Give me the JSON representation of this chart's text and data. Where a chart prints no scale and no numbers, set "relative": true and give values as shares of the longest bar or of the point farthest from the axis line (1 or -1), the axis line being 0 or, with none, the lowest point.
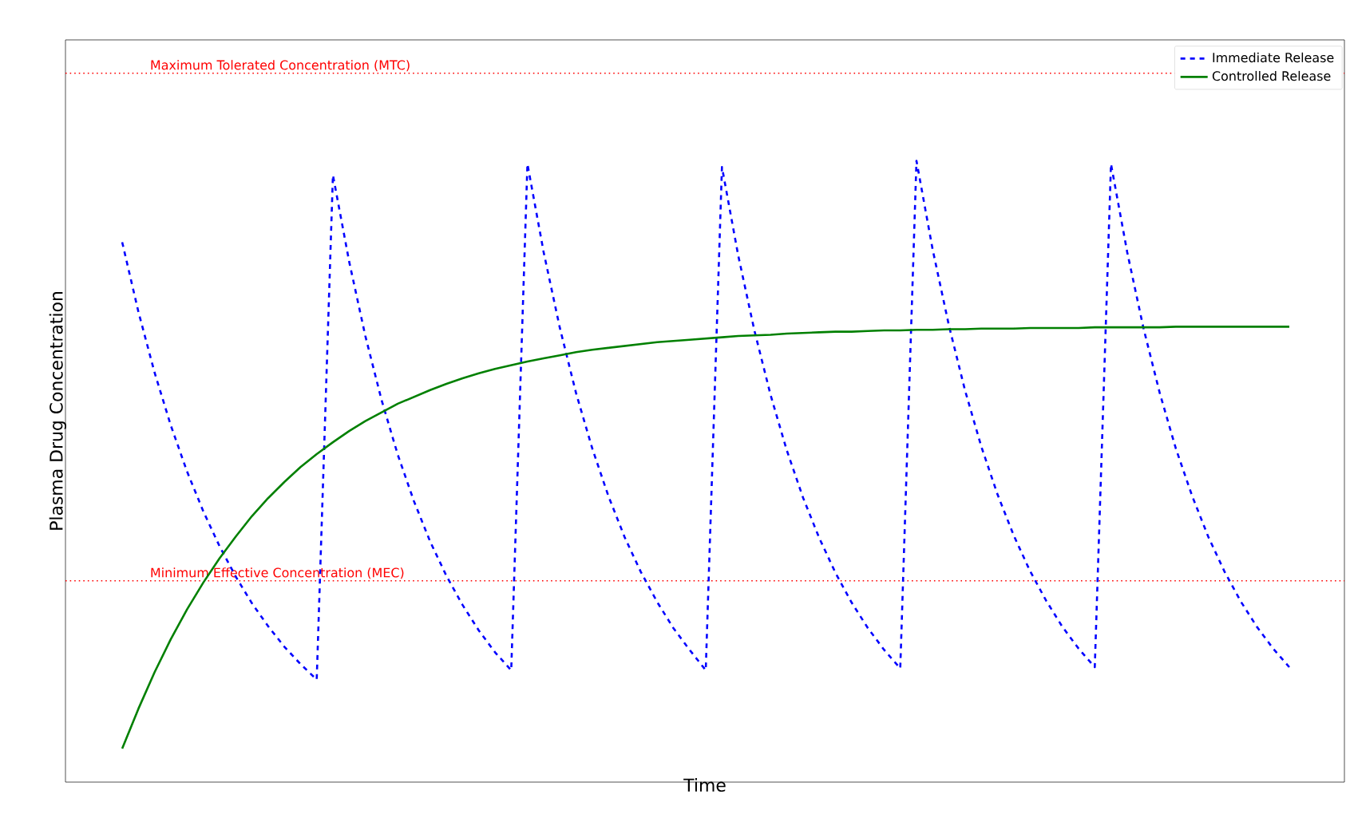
{
  "chart_data": {
    "type": "line",
    "relative": true,
    "xlabel": "Time",
    "ylabel": "Plasma Drug Concentration",
    "legend": "top right",
    "categories": [
      null,
      null,
      null,
      null,
      null,
      null,
      null,
      null,
      null,
      null,
      null,
      null,
      null,
      null,
      null,
      null,
      null,
      null,
      null,
      null,
      null,
      null,
      null,
      null,
      null,
      null,
      null,
      null,
      null,
      null,
      null,
      null,
      null,
      null,
      null,
      null,
      null,
      null,
      null,
      null,
      null,
      null,
      null,
      null,
      null,
      null,
      null,
      null,
      null,
      null,
      null,
      null,
      null,
      null,
      null,
      null,
      null,
      null,
      null,
      null,
      null,
      null,
      null,
      null,
      null,
      null,
      null,
      null,
      null,
      null,
      null,
      null,
      null
    ],
    "series": [
      {
        "name": "Immediate Release",
        "color": "#0000ff",
        "line_style": "dashed",
        "values": [
          0.869,
          0.757,
          0.659,
          0.574,
          0.5,
          0.436,
          0.38,
          0.331,
          0.288,
          0.251,
          0.218,
          0.19,
          0.165,
          0.977,
          0.838,
          0.718,
          0.615,
          0.527,
          0.452,
          0.387,
          0.332,
          0.285,
          0.244,
          0.209,
          0.18,
          0.995,
          0.853,
          0.731,
          0.626,
          0.537,
          0.46,
          0.394,
          0.338,
          0.29,
          0.248,
          0.213,
          0.18,
          0.99,
          0.848,
          0.727,
          0.623,
          0.534,
          0.458,
          0.393,
          0.337,
          0.289,
          0.248,
          0.213,
          0.183,
          1.0,
          0.857,
          0.735,
          0.63,
          0.54,
          0.463,
          0.397,
          0.34,
          0.292,
          0.25,
          0.215,
          0.185,
          0.995,
          0.853,
          0.731,
          0.627,
          0.537,
          0.461,
          0.395,
          0.339,
          0.291,
          0.25,
          0.215,
          0.185
        ]
      },
      {
        "name": "Controlled Release",
        "color": "#008000",
        "line_style": "solid",
        "values": [
          0.054,
          0.118,
          0.177,
          0.23,
          0.278,
          0.321,
          0.36,
          0.395,
          0.428,
          0.457,
          0.483,
          0.507,
          0.528,
          0.547,
          0.565,
          0.581,
          0.595,
          0.609,
          0.62,
          0.631,
          0.641,
          0.65,
          0.658,
          0.665,
          0.671,
          0.677,
          0.682,
          0.687,
          0.692,
          0.696,
          0.699,
          0.702,
          0.705,
          0.708,
          0.71,
          0.712,
          0.714,
          0.716,
          0.718,
          0.719,
          0.72,
          0.722,
          0.723,
          0.724,
          0.725,
          0.725,
          0.726,
          0.727,
          0.727,
          0.728,
          0.728,
          0.729,
          0.729,
          0.73,
          0.73,
          0.73,
          0.731,
          0.731,
          0.731,
          0.731,
          0.732,
          0.732,
          0.732,
          0.732,
          0.732,
          0.733,
          0.733,
          0.733,
          0.733,
          0.733,
          0.733,
          0.733,
          0.733
        ]
      }
    ],
    "ref_lines": [
      {
        "axis": "y",
        "value": 1.141,
        "label": "Maximum Tolerated Concentration (MTC)",
        "color": "#ff0000",
        "line_style": "dotted"
      },
      {
        "axis": "y",
        "value": 0.324,
        "label": "Minimum Effective Concentration (MEC)",
        "color": "#ff0000",
        "line_style": "dotted"
      }
    ]
  }
}
